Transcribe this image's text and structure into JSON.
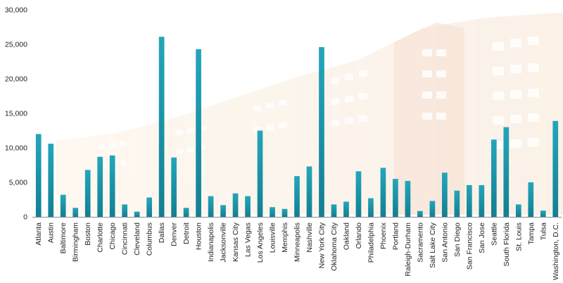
{
  "chart_data": {
    "type": "bar",
    "title": "",
    "xlabel": "",
    "ylabel": "",
    "ylim": [
      0,
      30000
    ],
    "yticks": [
      "0",
      "5,000",
      "10,000",
      "15,000",
      "20,000",
      "25,000",
      "30,000"
    ],
    "ytick_values": [
      0,
      5000,
      10000,
      15000,
      20000,
      25000,
      30000
    ],
    "grid": false,
    "legend": "none",
    "categories": [
      "Atlanta",
      "Austin",
      "Baltimore",
      "Birmingham",
      "Boston",
      "Charlotte",
      "Chicago",
      "Cincinnati",
      "Cleveland",
      "Columbus",
      "Dallas",
      "Denver",
      "Detroit",
      "Houston",
      "Indianapolis",
      "Jacksonville",
      "Kansas City",
      "Las Vegas",
      "Los Angeles",
      "Louisville",
      "Memphis",
      "Minneapolis",
      "Nashville",
      "New York City",
      "Oklahoma City",
      "Oakland",
      "Orlando",
      "Philadelphia",
      "Phoenix",
      "Portland",
      "Raleigh-Durham",
      "Sacramento",
      "Salt Lake City",
      "San Antonio",
      "San Diego",
      "San Francisco",
      "San Jose",
      "Seattle",
      "South Florida",
      "St. Louis",
      "Tampa",
      "Tulsa",
      "Washington, D.C."
    ],
    "values": [
      12000,
      10600,
      3200,
      1300,
      6800,
      8700,
      8900,
      1800,
      750,
      2800,
      26100,
      8600,
      1300,
      24300,
      3000,
      1700,
      3400,
      3000,
      12500,
      1400,
      1150,
      5900,
      7300,
      24600,
      1800,
      2200,
      6600,
      2700,
      7100,
      5500,
      5200,
      850,
      2300,
      6400,
      3800,
      4600,
      4600,
      11200,
      13000,
      1800,
      5000,
      900,
      13900
    ],
    "colors": {
      "bar": "#1f9bb0",
      "axis": "#8a8a8a",
      "text": "#222222"
    }
  }
}
